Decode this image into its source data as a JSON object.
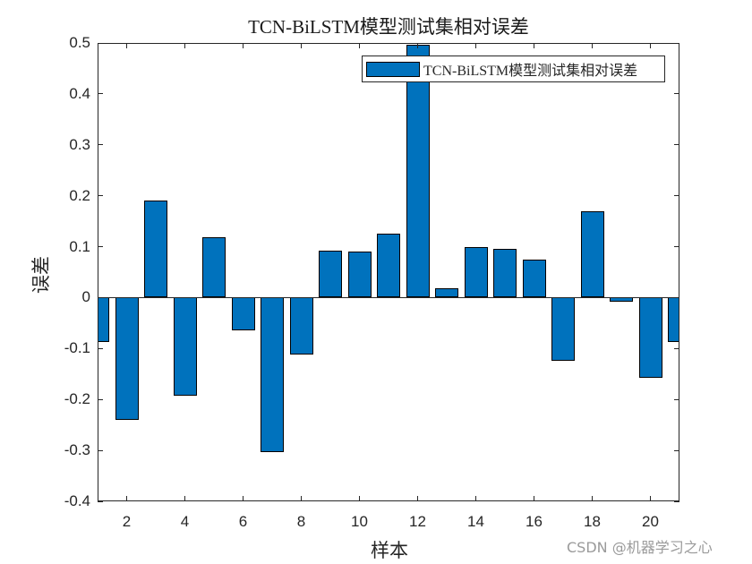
{
  "chart_data": {
    "type": "bar",
    "title": "TCN-BiLSTM模型测试集相对误差",
    "xlabel": "样本",
    "ylabel": "误差",
    "categories": [
      1,
      2,
      3,
      4,
      5,
      6,
      7,
      8,
      9,
      10,
      11,
      12,
      13,
      14,
      15,
      16,
      17,
      18,
      19,
      20,
      21
    ],
    "series": [
      {
        "name": "TCN-BiLSTM模型测试集相对误差",
        "color": "#0072BD",
        "values": [
          -0.088,
          -0.24,
          0.191,
          -0.193,
          0.118,
          -0.064,
          -0.304,
          -0.112,
          0.093,
          0.091,
          0.126,
          0.496,
          0.019,
          0.1,
          0.095,
          0.074,
          -0.124,
          0.17,
          -0.008,
          -0.157,
          -0.088
        ]
      }
    ],
    "xlim": [
      1,
      21
    ],
    "ylim": [
      -0.4,
      0.5
    ],
    "xticks": [
      2,
      4,
      6,
      8,
      10,
      12,
      14,
      16,
      18,
      20
    ],
    "xtick_labels": [
      "2",
      "4",
      "6",
      "8",
      "10",
      "12",
      "14",
      "16",
      "18",
      "20"
    ],
    "yticks": [
      0.5,
      0.4,
      0.3,
      0.2,
      0.1,
      0,
      -0.1,
      -0.2,
      -0.3,
      -0.4
    ],
    "ytick_labels": [
      "0.5",
      "0.4",
      "0.3",
      "0.2",
      "0.1",
      "0",
      "-0.1",
      "-0.2",
      "-0.3",
      "-0.4"
    ],
    "bar_width": 0.8,
    "grid": false,
    "legend_position": "northeast"
  },
  "legend": {
    "label": "TCN-BiLSTM模型测试集相对误差"
  },
  "watermark": "CSDN @机器学习之心"
}
